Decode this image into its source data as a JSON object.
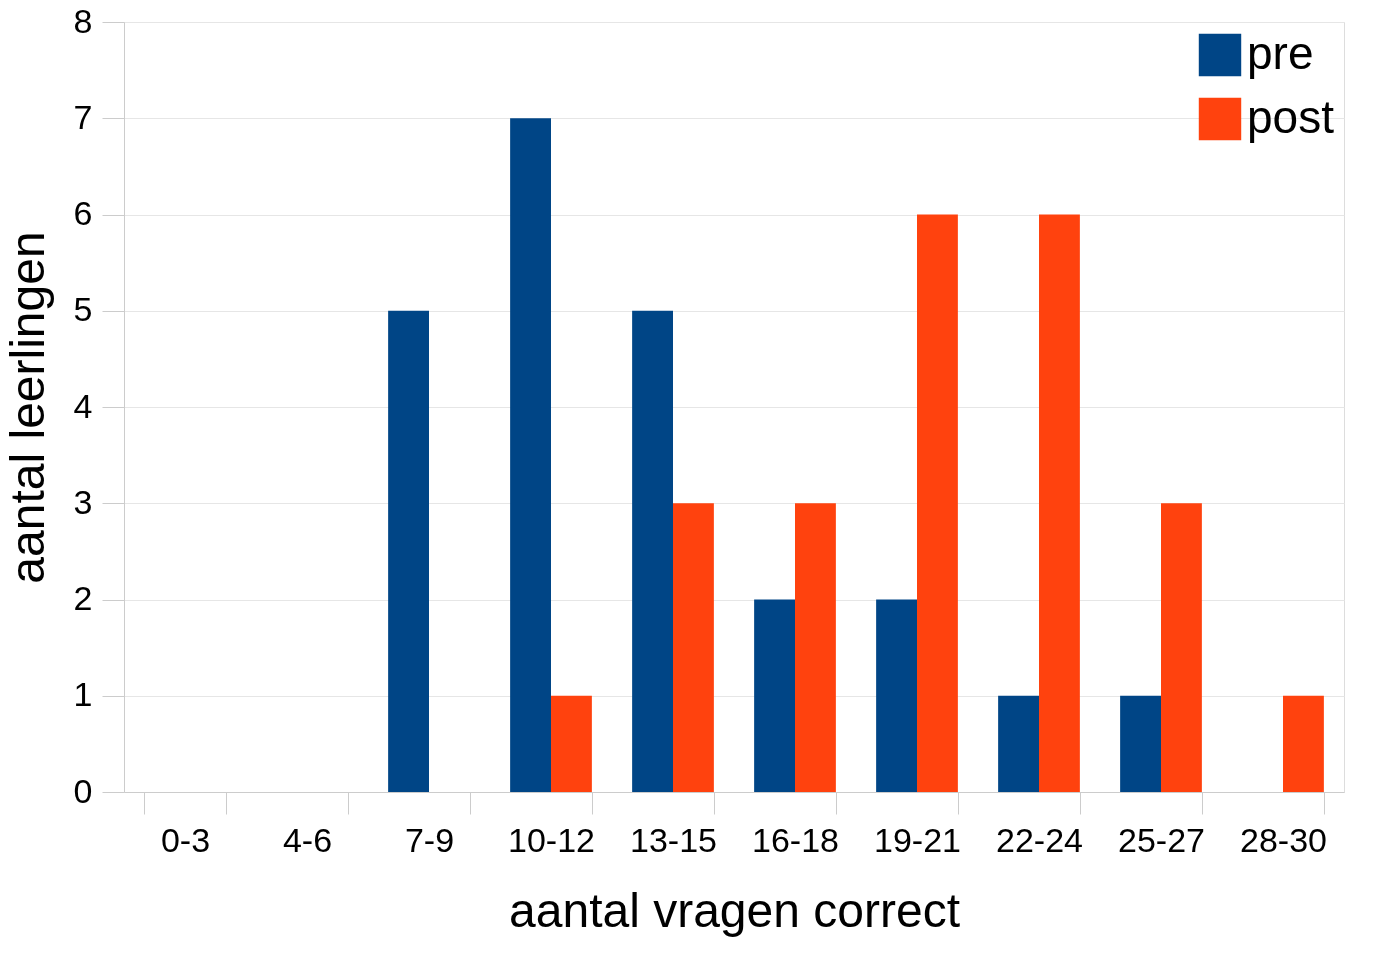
{
  "chart_data": {
    "type": "bar",
    "xlabel": "aantal vragen correct",
    "ylabel": "aantal leerlingen",
    "categories": [
      "0-3",
      "4-6",
      "7-9",
      "10-12",
      "13-15",
      "16-18",
      "19-21",
      "22-24",
      "25-27",
      "28-30"
    ],
    "series": [
      {
        "name": "pre",
        "color": "#004586",
        "values": [
          0,
          0,
          5,
          7,
          5,
          2,
          2,
          1,
          1,
          0
        ]
      },
      {
        "name": "post",
        "color": "#ff420e",
        "values": [
          0,
          0,
          0,
          1,
          3,
          3,
          6,
          6,
          3,
          1
        ]
      }
    ],
    "ylim": [
      0,
      8
    ],
    "yticks": [
      0,
      1,
      2,
      3,
      4,
      5,
      6,
      7,
      8
    ],
    "grid": "y",
    "legend": "top right"
  }
}
